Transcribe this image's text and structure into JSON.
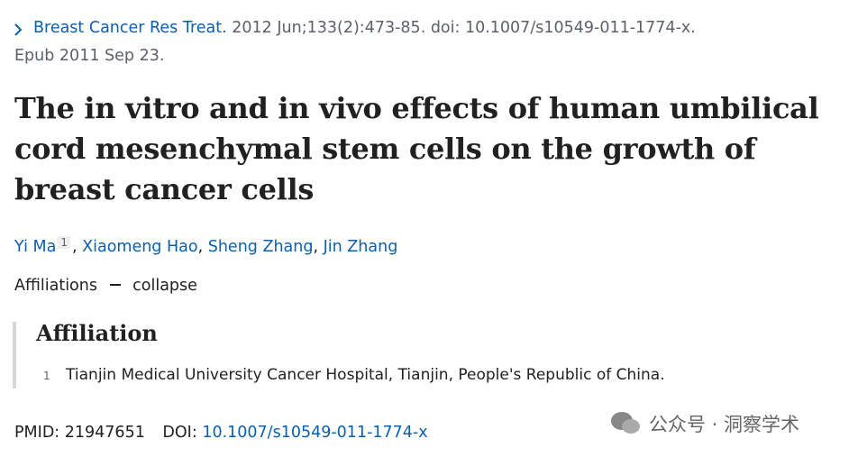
{
  "citation": {
    "journal": "Breast Cancer Res Treat.",
    "details": "2012 Jun;133(2):473-85. doi: 10.1007/s10549-011-1774-x.",
    "epub": "Epub 2011 Sep 23."
  },
  "title": "The in vitro and in vivo effects of human umbilical cord mesenchymal stem cells on the growth of breast cancer cells",
  "authors": [
    {
      "name": "Yi Ma",
      "affiliation": "1"
    },
    {
      "name": "Xiaomeng Hao"
    },
    {
      "name": "Sheng Zhang"
    },
    {
      "name": "Jin Zhang"
    }
  ],
  "author_separator": ",",
  "affiliations_toggle": {
    "label": "Affiliations",
    "action": "collapse"
  },
  "affiliation": {
    "heading": "Affiliation",
    "items": [
      {
        "number": "1",
        "text": "Tianjin Medical University Cancer Hospital, Tianjin, People's Republic of China."
      }
    ]
  },
  "identifiers": {
    "pmid_label": "PMID:",
    "pmid": "21947651",
    "doi_label": "DOI:",
    "doi": "10.1007/s10549-011-1774-x"
  },
  "watermark": "公众号 · 洞察学术"
}
